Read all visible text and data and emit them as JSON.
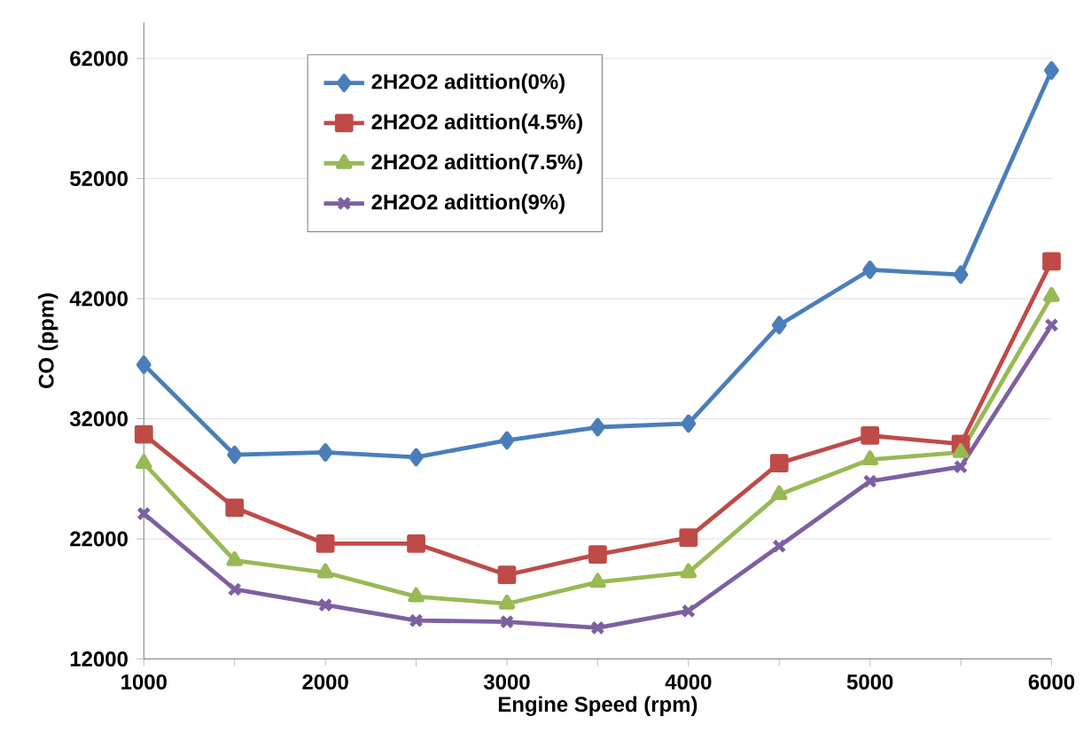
{
  "chart_data": {
    "type": "line",
    "xlabel": "Engine Speed (rpm)",
    "ylabel": "CO (ppm)",
    "x": [
      1000,
      1500,
      2000,
      2500,
      3000,
      3500,
      4000,
      4500,
      5000,
      5500,
      6000
    ],
    "series": [
      {
        "name": "2H2O2 adittion(0%)",
        "color": "#4a7ebb",
        "marker": "diamond",
        "values": [
          36500,
          29000,
          29200,
          28800,
          30200,
          31300,
          31600,
          39800,
          44400,
          44000,
          61000
        ]
      },
      {
        "name": "2H2O2 adittion(4.5%)",
        "color": "#be4b48",
        "marker": "square",
        "values": [
          30700,
          24600,
          21600,
          21600,
          19000,
          20700,
          22100,
          28300,
          30600,
          29900,
          45100
        ]
      },
      {
        "name": "2H2O2 adittion(7.5%)",
        "color": "#98b954",
        "marker": "triangle",
        "values": [
          28300,
          20200,
          19200,
          17200,
          16600,
          18400,
          19200,
          25700,
          28600,
          29200,
          42200
        ]
      },
      {
        "name": "2H2O2 adittion(9%)",
        "color": "#7d60a0",
        "marker": "cross",
        "values": [
          24100,
          17800,
          16500,
          15200,
          15100,
          14600,
          16000,
          21400,
          26800,
          28000,
          39800
        ]
      }
    ],
    "xlim": [
      1000,
      6000
    ],
    "ylim": [
      12000,
      65000
    ],
    "xticks": [
      1000,
      {
        "value": 1500,
        "label": null
      },
      2000,
      {
        "value": 2500,
        "label": null
      },
      3000,
      {
        "value": 3500,
        "label": null
      },
      4000,
      {
        "value": 4500,
        "label": null
      },
      5000,
      {
        "value": 5500,
        "label": null
      },
      6000
    ],
    "yticks": [
      12000,
      22000,
      32000,
      42000,
      52000,
      62000
    ],
    "grid": "y",
    "legend": "top left",
    "line_style": "solid"
  }
}
